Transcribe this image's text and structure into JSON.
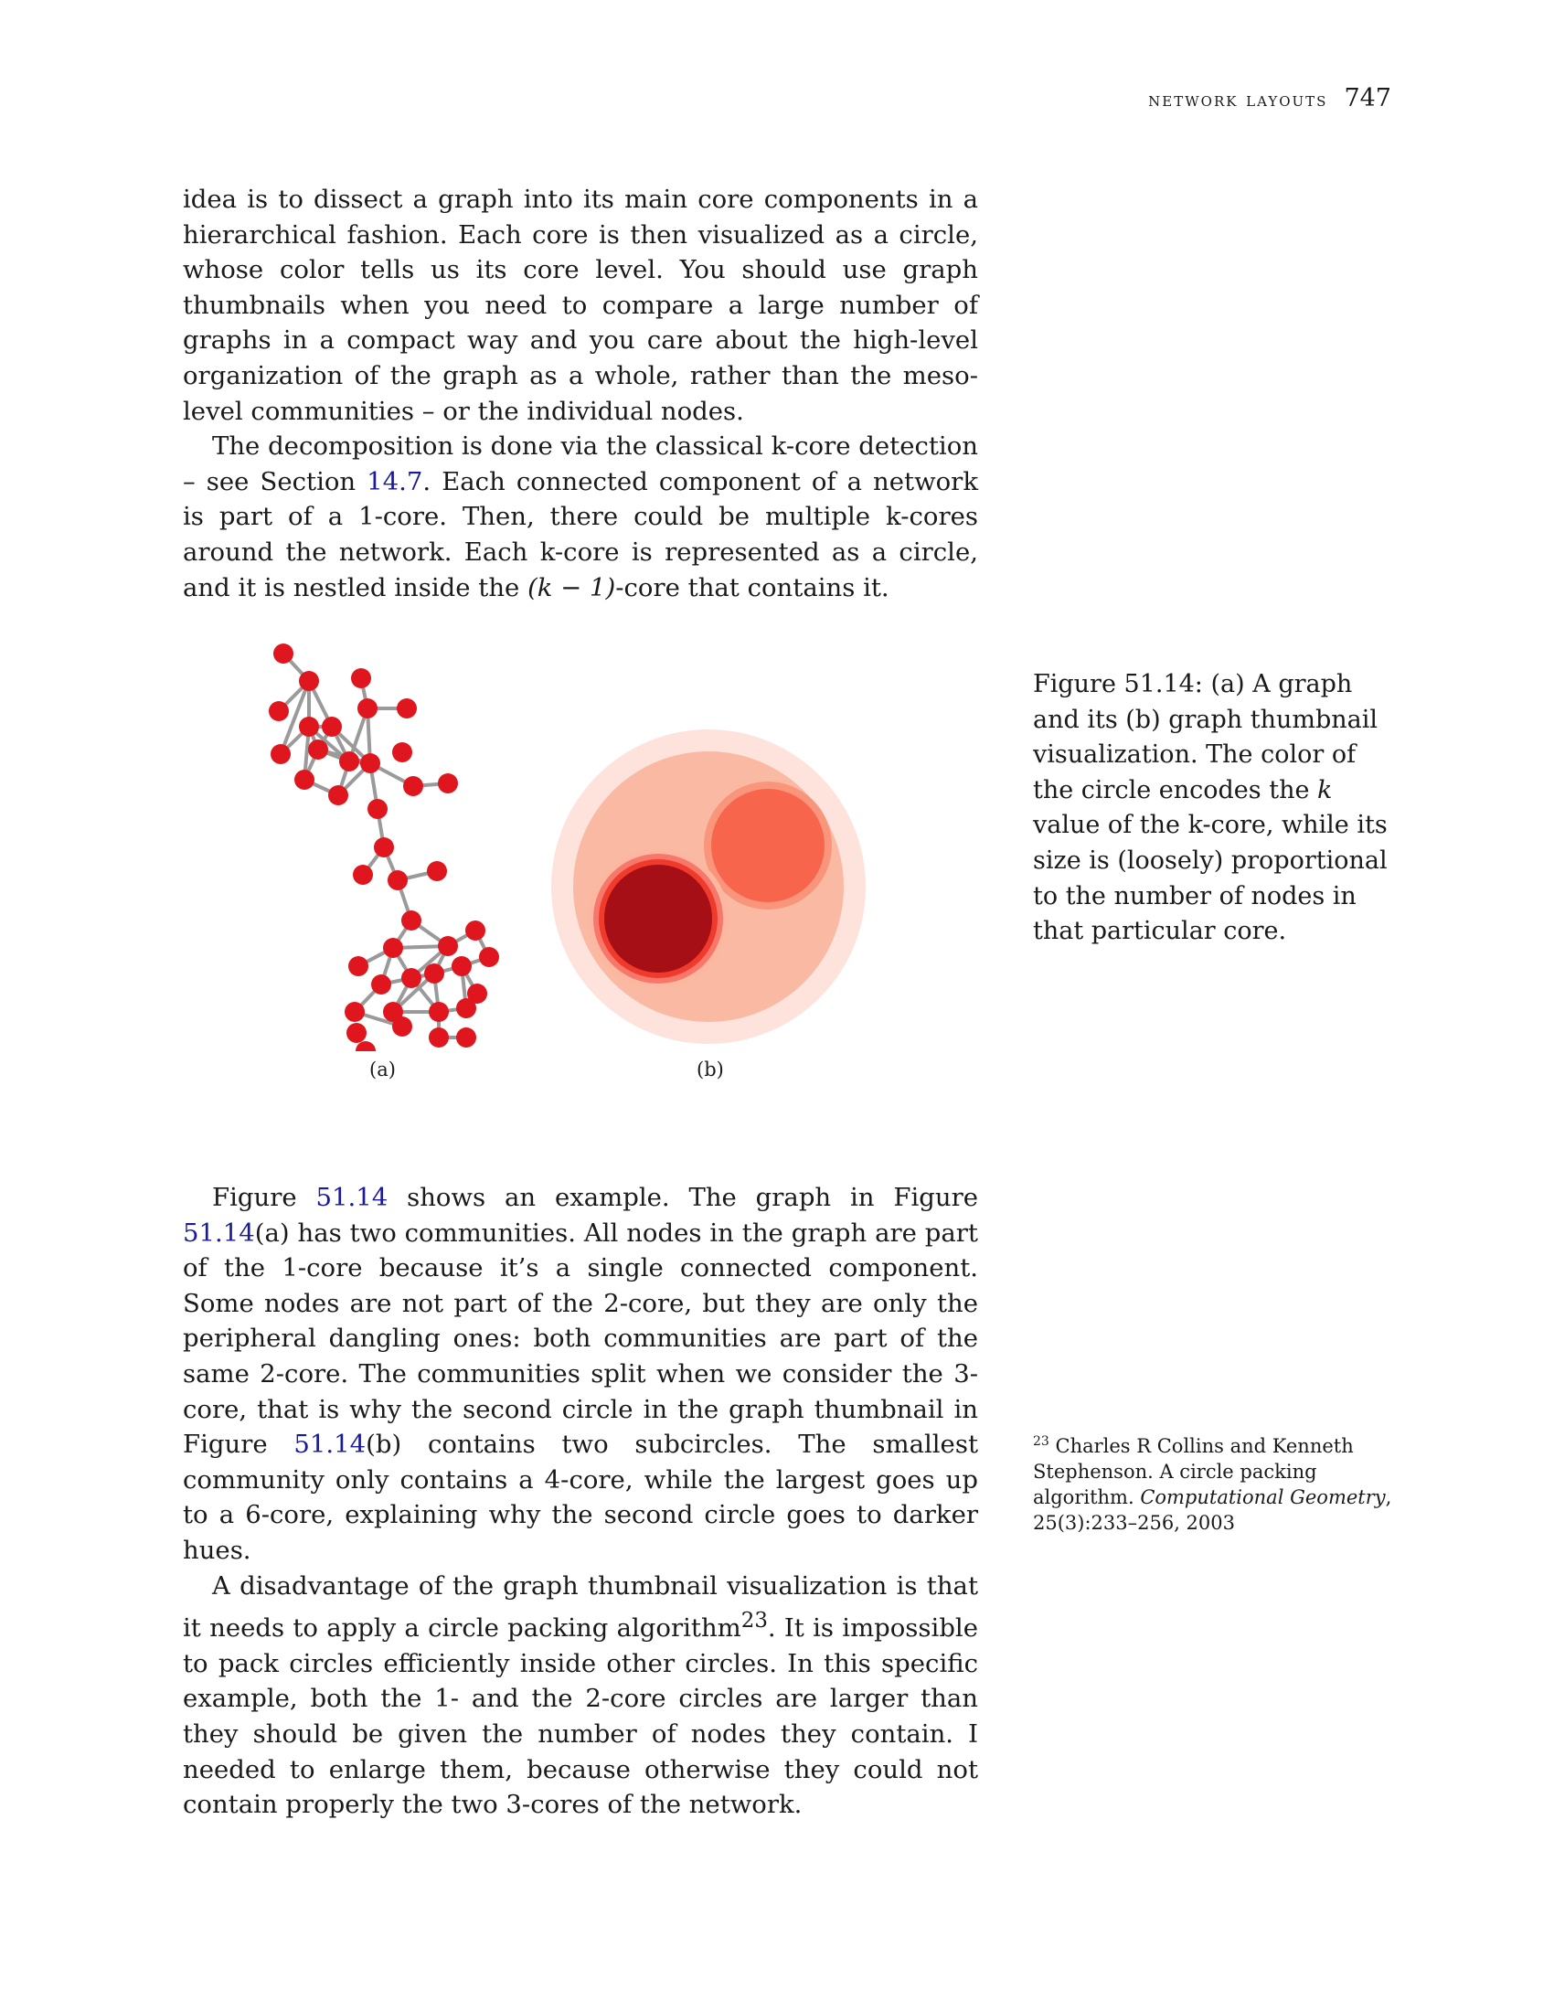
{
  "header": {
    "section": "network layouts",
    "page_number": "747"
  },
  "para1": "idea is to dissect a graph into its main core components in a hierarchical fashion. Each core is then visualized as a circle, whose color tells us its core level. You should use graph thumbnails when you need to compare a large number of graphs in a compact way and you care about the high-level organization of the graph as a whole, rather than the meso-level communities – or the individual nodes.",
  "para2": {
    "a": "The decomposition is done via the classical k-core detection – see Section ",
    "ref": "14.7",
    "b": ". Each connected component of a network is part of a 1-core. Then, there could be multiple k-cores around the network. Each k-core is represented as a circle, and it is nestled inside the ",
    "math": "(k − 1)",
    "c": "-core that contains it."
  },
  "figure": {
    "label_a": "(a)",
    "label_b": "(b)",
    "caption_a": "Figure 51.14: (a) A graph and its (b) graph thumbnail visualization. The color of the circle encodes the ",
    "caption_k": "k",
    "caption_b": " value of the k-core, while its size is (loosely) proportional to the number of nodes in that particular core.",
    "node_color": "#e0161e",
    "edge_color": "#9a9a9a",
    "core_colors": [
      "#fde3dc",
      "#f9b9a2",
      "#f7664c",
      "#a50f15"
    ]
  },
  "para3": {
    "t1": "Figure ",
    "r1": "51.14",
    "t2": " shows an example. The graph in Figure ",
    "r2": "51.14",
    "t3": "(a) has two communities. All nodes in the graph are part of the 1-core because it’s a single connected component. Some nodes are not part of the 2-core, but they are only the peripheral dangling ones: both communities are part of the same 2-core. The communities split when we consider the 3-core, that is why the second circle in the graph thumbnail in Figure ",
    "r3": "51.14",
    "t4": "(b) contains two subcircles. The smallest community only contains a 4-core, while the largest goes up to a 6-core, explaining why the second circle goes to darker hues."
  },
  "para4": {
    "a": "A disadvantage of the graph thumbnail visualization is that it needs to apply a circle packing algorithm",
    "sup": "23",
    "b": ". It is impossible to pack circles efficiently inside other circles. In this specific example, both the 1- and the 2-core circles are larger than they should be given the number of nodes they contain. I needed to enlarge them, because otherwise they could not contain properly the two 3-cores of the network."
  },
  "footnote": {
    "num": "23",
    "a": " Charles R Collins and Kenneth Stephenson. A circle packing algorithm. ",
    "journal": "Computational Geometry",
    "b": ", 25(3):233–256, 2003"
  }
}
